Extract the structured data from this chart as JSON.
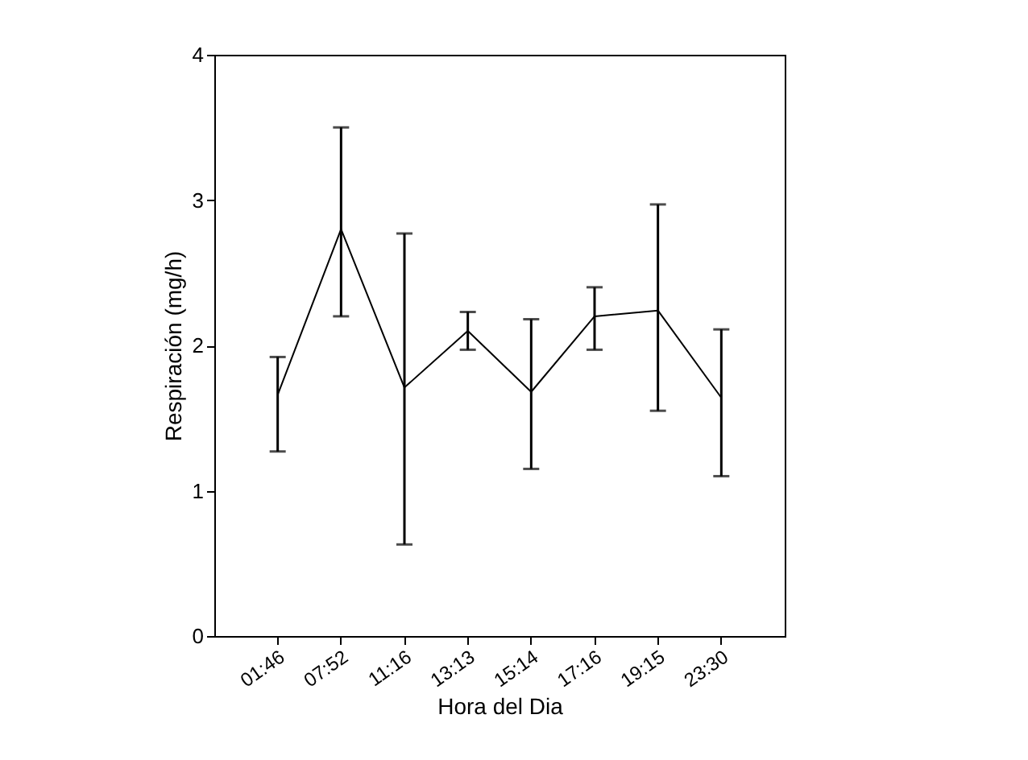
{
  "chart_data": {
    "type": "line",
    "xlabel": "Hora del Dia",
    "ylabel": "Respiración (mg/h)",
    "categories": [
      "01:46",
      "07:52",
      "11:16",
      "13:13",
      "15:14",
      "17:16",
      "19:15",
      "23:30"
    ],
    "values": [
      1.66,
      2.8,
      1.71,
      2.1,
      1.68,
      2.2,
      2.24,
      1.64
    ],
    "errors": [
      [
        1.27,
        1.92
      ],
      [
        2.2,
        3.5
      ],
      [
        0.63,
        2.77
      ],
      [
        1.97,
        2.23
      ],
      [
        1.15,
        2.18
      ],
      [
        1.97,
        2.4
      ],
      [
        1.55,
        2.97
      ],
      [
        1.1,
        2.11
      ]
    ],
    "color": "#000000",
    "ylim": [
      0,
      4
    ],
    "yticks": [
      0,
      1,
      2,
      3,
      4
    ],
    "grid": false,
    "marker": "none",
    "line_style": "solid"
  }
}
